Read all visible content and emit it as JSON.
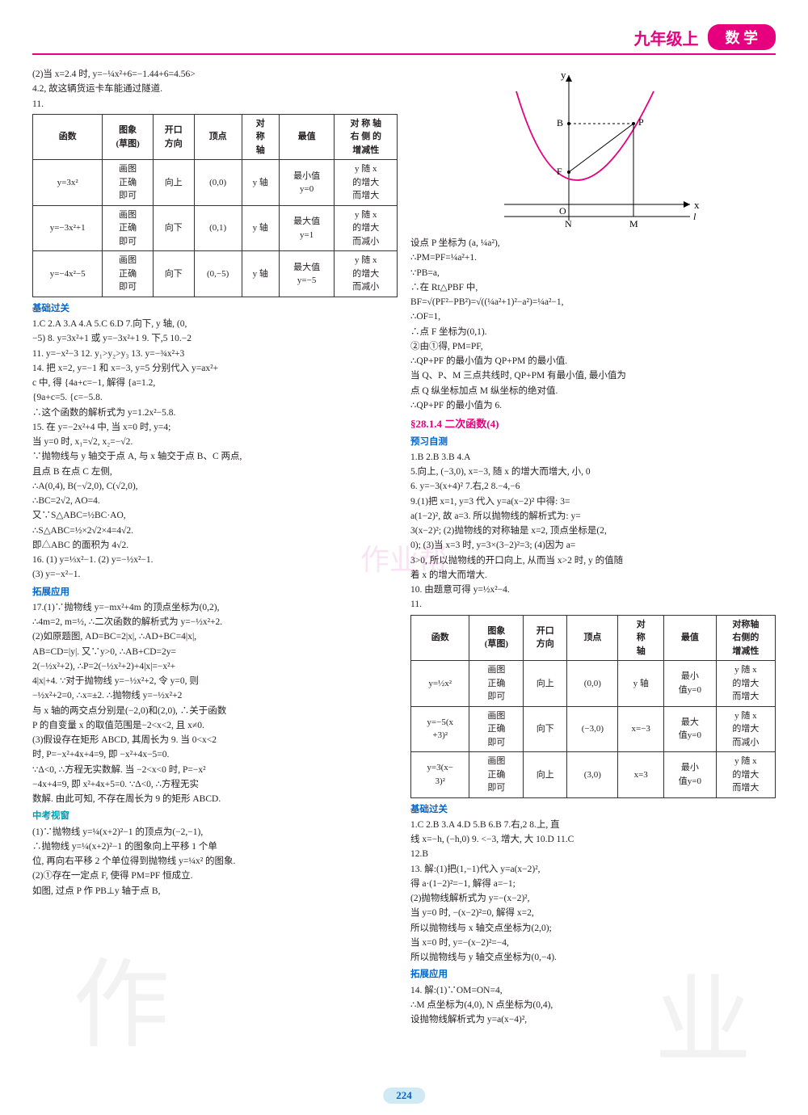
{
  "header": {
    "grade": "九年级上",
    "subject": "数  学"
  },
  "colors": {
    "accent": "#e6007e",
    "blue": "#0066cc",
    "cyan": "#00a0b0",
    "page_bg": "#cfe9f5"
  },
  "pageNumber": "224",
  "watermark": {
    "char1": "作",
    "char2": "业",
    "center": "作业帮"
  },
  "left": {
    "intro1": "(2)当 x=2.4 时, y=−¼x²+6=−1.44+6=4.56>",
    "intro2": "4.2, 故这辆货运卡车能通过隧道.",
    "tbl1_no": "11.",
    "tbl1": {
      "head": [
        "函数",
        "图象\n(草图)",
        "开口\n方向",
        "顶点",
        "对\n称\n轴",
        "最值",
        "对 称 轴\n右 侧 的\n增减性"
      ],
      "rows": [
        [
          "y=3x²",
          "画图\n正确\n即可",
          "向上",
          "(0,0)",
          "y 轴",
          "最小值\ny=0",
          "y 随 x\n的增大\n而增大"
        ],
        [
          "y=−3x²+1",
          "画图\n正确\n即可",
          "向下",
          "(0,1)",
          "y 轴",
          "最大值\ny=1",
          "y 随 x\n的增大\n而减小"
        ],
        [
          "y=−4x²−5",
          "画图\n正确\n即可",
          "向下",
          "(0,−5)",
          "y 轴",
          "最大值\ny=−5",
          "y 随 x\n的增大\n而减小"
        ]
      ]
    },
    "sec_jichu": "基础过关",
    "jichu_lines": [
      "1.C  2.A  3.A  4.A  5.C  6.D  7.向下, y 轴, (0,",
      "−5)  8. y=3x²+1 或 y=−3x²+1  9. 下,5  10.−2",
      "11. y=−x²−3  12. y₁>y₂>y₃  13. y=−¾x²+3",
      "14. 把 x=2, y=−1 和 x=−3, y=5 分别代入 y=ax²+",
      "   c 中, 得 {4a+c=−1, 解得 {a=1.2,",
      "           {9a+c=5.       {c=−5.8.",
      "   ∴这个函数的解析式为 y=1.2x²−5.8.",
      "15. 在 y=−2x²+4 中, 当 x=0 时, y=4;",
      "   当 y=0 时, x₁=√2, x₂=−√2.",
      "   ∵抛物线与 y 轴交于点 A, 与 x 轴交于点 B、C 两点,",
      "   且点 B 在点 C 左侧,",
      "   ∴A(0,4), B(−√2,0), C(√2,0),",
      "   ∴BC=2√2, AO=4.",
      "   又∵S△ABC=½BC·AO,",
      "   ∴S△ABC=½×2√2×4=4√2.",
      "   即△ABC 的面积为 4√2.",
      "16. (1) y=⅓x²−1.  (2) y=−½x²−1.",
      "   (3) y=−x²−1."
    ],
    "sec_tuozhan": "拓展应用",
    "tuozhan_lines": [
      "17.(1)∵抛物线 y=−mx²+4m 的顶点坐标为(0,2),",
      "   ∴4m=2, m=½, ∴二次函数的解析式为 y=−½x²+2.",
      "   (2)如原题图, AD=BC=2|x|, ∴AD+BC=4|x|,",
      "   AB=CD=|y|. 又∵y>0, ∴AB+CD=2y=",
      "   2(−½x²+2), ∴P=2(−½x²+2)+4|x|=−x²+",
      "   4|x|+4. ∵对于抛物线 y=−½x²+2, 令 y=0, 则",
      "   −½x²+2=0, ∴x=±2. ∴抛物线 y=−½x²+2",
      "   与 x 轴的两交点分别是(−2,0)和(2,0), ∴关于函数",
      "   P 的自变量 x 的取值范围是−2<x<2, 且 x≠0.",
      "   (3)假设存在矩形 ABCD, 其周长为 9. 当 0<x<2",
      "   时, P=−x²+4x+4=9, 即 −x²+4x−5=0.",
      "   ∵Δ<0, ∴方程无实数解. 当 −2<x<0 时, P=−x²",
      "   −4x+4=9, 即 x²+4x+5=0. ∵Δ<0, ∴方程无实",
      "   数解. 由此可知, 不存在周长为 9 的矩形 ABCD."
    ],
    "sec_zhongkao": "中考视窗",
    "zhongkao_lines": [
      "(1)∵抛物线 y=¼(x+2)²−1 的顶点为(−2,−1),",
      "∴抛物线 y=¼(x+2)²−1 的图象向上平移 1 个单",
      "位, 再向右平移 2 个单位得到抛物线 y=¼x² 的图象.",
      "(2)①存在一定点 F, 使得 PM=PF 恒成立.",
      "如图, 过点 P 作 PB⊥y 轴于点 B,"
    ]
  },
  "right": {
    "graph": {
      "axis_x": "x",
      "axis_y": "y",
      "labels": {
        "O": "O",
        "F": "F",
        "B": "B",
        "P": "P",
        "N": "N",
        "M": "M",
        "l": "l"
      },
      "curve_color": "#e6007e",
      "axis_color": "#000000"
    },
    "deriv_lines": [
      "设点 P 坐标为 (a, ¼a²),",
      "∴PM=PF=¼a²+1.",
      "∵PB=a,",
      "∴在 Rt△PBF 中,",
      "BF=√(PF²−PB²)=√((¼a²+1)²−a²)=¼a²−1,",
      "∴OF=1,",
      "∴点 F 坐标为(0,1).",
      "②由①得, PM=PF,",
      "∴QP+PF 的最小值为 QP+PM 的最小值.",
      "当 Q、P、M 三点共线时, QP+PM 有最小值, 最小值为",
      "点 Q 纵坐标加点 M 纵坐标的绝对值.",
      "∴QP+PF 的最小值为 6."
    ],
    "sec_title": "§28.1.4  二次函数(4)",
    "sec_yuxi": "预习自测",
    "yuxi_lines": [
      "1.B  2.B  3.B  4.A",
      "5.向上, (−3,0), x=−3, 随 x 的增大而增大, 小, 0",
      "6. y=−3(x+4)²  7.右,2  8.−4,−6",
      "9.(1)把 x=1, y=3 代入 y=a(x−2)² 中得: 3=",
      "a(1−2)², 故 a=3. 所以抛物线的解析式为: y=",
      "3(x−2)²; (2)抛物线的对称轴是 x=2, 顶点坐标是(2,",
      "0);  (3)当 x=3 时, y=3×(3−2)²=3; (4)因为 a=",
      "3>0, 所以抛物线的开口向上, 从而当 x>2 时, y 的值随",
      "着 x 的增大而增大.",
      "10. 由题意可得 y=½x²−4.",
      "11."
    ],
    "tbl2": {
      "head": [
        "函数",
        "图象\n(草图)",
        "开口\n方向",
        "顶点",
        "对\n称\n轴",
        "最值",
        "对称轴\n右侧的\n增减性"
      ],
      "rows": [
        [
          "y=½x²",
          "画图\n正确\n即可",
          "向上",
          "(0,0)",
          "y 轴",
          "最小\n值y=0",
          "y 随 x\n的增大\n而增大"
        ],
        [
          "y=−5(x\n+3)²",
          "画图\n正确\n即可",
          "向下",
          "(−3,0)",
          "x=−3",
          "最大\n值y=0",
          "y 随 x\n的增大\n而减小"
        ],
        [
          "y=3(x−\n3)²",
          "画图\n正确\n即可",
          "向上",
          "(3,0)",
          "x=3",
          "最小\n值y=0",
          "y 随 x\n的增大\n而增大"
        ]
      ]
    },
    "sec_jichu2": "基础过关",
    "jichu2_lines": [
      "1.C  2.B  3.A  4.D  5.B  6.B  7.右,2  8.上, 直",
      "线 x=−h, (−h,0)  9. <−3, 增大, 大  10.D  11.C",
      "12.B",
      "13. 解:(1)把(1,−1)代入 y=a(x−2)²,",
      "得 a·(1−2)²=−1, 解得 a=−1;",
      "(2)抛物线解析式为 y=−(x−2)²,",
      "当 y=0 时, −(x−2)²=0, 解得 x=2,",
      "所以抛物线与 x 轴交点坐标为(2,0);",
      "当 x=0 时, y=−(x−2)²=−4,",
      "所以抛物线与 y 轴交点坐标为(0,−4)."
    ],
    "sec_tuozhan2": "拓展应用",
    "tuozhan2_lines": [
      "14. 解:(1)∵OM=ON=4,",
      "∴M 点坐标为(4,0), N 点坐标为(0,4),",
      "设抛物线解析式为 y=a(x−4)²,"
    ]
  }
}
